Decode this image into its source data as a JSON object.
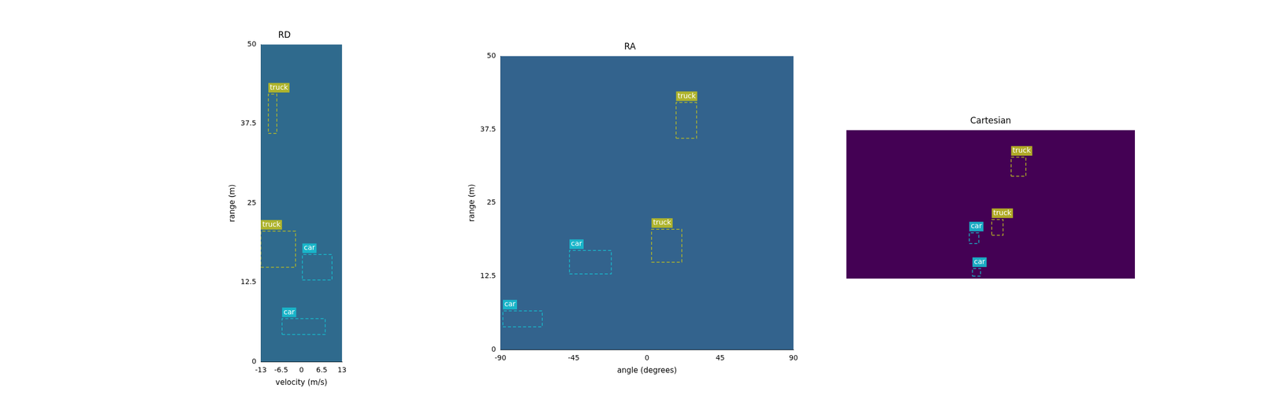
{
  "chart_data": [
    {
      "type": "heatmap_boxes",
      "title": "RD",
      "x_label": "velocity (m/s)",
      "y_label": "range (m)",
      "xlim": [
        -13,
        13
      ],
      "xticks": [
        -13,
        -6.5,
        0,
        6.5,
        13
      ],
      "ylim": [
        0,
        50
      ],
      "yticks": [
        0,
        12.5,
        25,
        37.5,
        50
      ],
      "grid": false,
      "color": "#2f6a8d",
      "boxes": [
        {
          "label": "truck",
          "color": "#bcbd22",
          "x": [
            -10.6,
            -7.9
          ],
          "y": [
            36.0,
            42.2
          ]
        },
        {
          "label": "truck",
          "color": "#bcbd22",
          "x": [
            -13,
            -1.9
          ],
          "y": [
            14.9,
            20.6
          ]
        },
        {
          "label": "car",
          "color": "#17becf",
          "x": [
            0.3,
            9.8
          ],
          "y": [
            12.9,
            16.9
          ]
        },
        {
          "label": "car",
          "color": "#17becf",
          "x": [
            -6.2,
            7.6
          ],
          "y": [
            4.3,
            6.8
          ]
        }
      ]
    },
    {
      "type": "heatmap_boxes",
      "title": "RA",
      "x_label": "angle (degrees)",
      "y_label": "range (m)",
      "xlim": [
        -90,
        90
      ],
      "xticks": [
        -90,
        -45,
        0,
        45,
        90
      ],
      "ylim": [
        0,
        50
      ],
      "yticks": [
        0,
        12.5,
        25,
        37.5,
        50
      ],
      "grid": false,
      "color": "#33638d",
      "boxes": [
        {
          "label": "truck",
          "color": "#bcbd22",
          "x": [
            17.9,
            30.5
          ],
          "y": [
            36.0,
            42.1
          ]
        },
        {
          "label": "truck",
          "color": "#bcbd22",
          "x": [
            2.8,
            21.4
          ],
          "y": [
            14.9,
            20.5
          ]
        },
        {
          "label": "car",
          "color": "#17becf",
          "x": [
            -47.6,
            -21.9
          ],
          "y": [
            12.9,
            16.9
          ]
        },
        {
          "label": "car",
          "color": "#17becf",
          "x": [
            -88.5,
            -64.3
          ],
          "y": [
            3.9,
            6.6
          ]
        }
      ]
    },
    {
      "type": "heatmap_boxes",
      "title": "Cartesian",
      "xlim": [
        -50,
        50
      ],
      "ylim": [
        0,
        50
      ],
      "grid": false,
      "tick_labels": false,
      "color": "#440154",
      "boxes": [
        {
          "label": "truck",
          "color": "#bcbd22",
          "x": [
            7.1,
            12.2
          ],
          "y": [
            34.5,
            40.9
          ]
        },
        {
          "label": "truck",
          "color": "#bcbd22",
          "x": [
            0.4,
            4.3
          ],
          "y": [
            14.6,
            19.9
          ]
        },
        {
          "label": "car",
          "color": "#17becf",
          "x": [
            -7.4,
            -4.1
          ],
          "y": [
            11.8,
            15.4
          ]
        },
        {
          "label": "car",
          "color": "#17becf",
          "x": [
            -6.3,
            -3.5
          ],
          "y": [
            0.8,
            3.4
          ]
        }
      ]
    }
  ]
}
